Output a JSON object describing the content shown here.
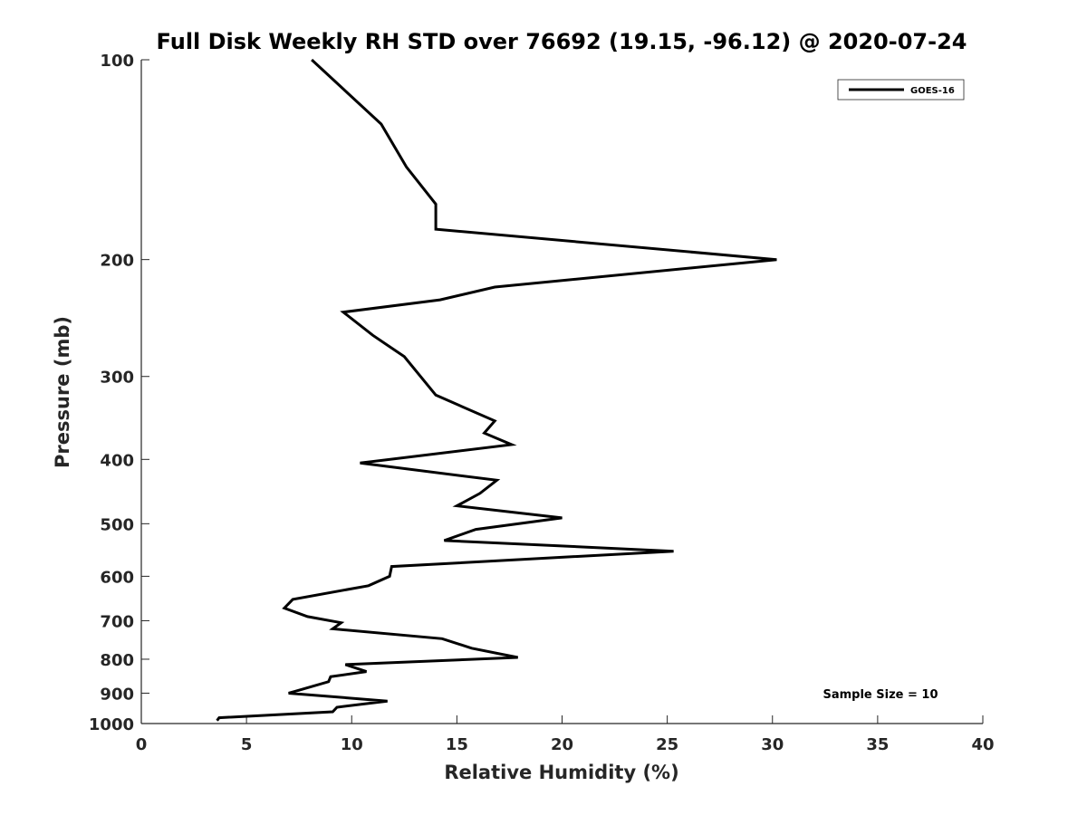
{
  "chart_data": {
    "type": "line",
    "title": "Full Disk Weekly RH STD over 76692 (19.15, -96.12) @ 2020-07-24",
    "xlabel": "Relative Humidity (%)",
    "ylabel": "Pressure (mb)",
    "xlim": [
      0,
      40
    ],
    "ylim": [
      100,
      1000
    ],
    "y_scale": "log",
    "y_reversed": true,
    "x_ticks": [
      0,
      5,
      10,
      15,
      20,
      25,
      30,
      35,
      40
    ],
    "y_ticks": [
      100,
      200,
      300,
      400,
      500,
      600,
      700,
      800,
      900,
      1000
    ],
    "grid": false,
    "legend": {
      "entries": [
        "GOES-16"
      ],
      "placement": "top-right"
    },
    "annotation": "Sample Size = 10",
    "series": [
      {
        "name": "GOES-16",
        "color": "#000000",
        "points": [
          [
            8.1,
            100
          ],
          [
            11.4,
            125
          ],
          [
            12.6,
            145
          ],
          [
            14.0,
            165
          ],
          [
            14.0,
            180
          ],
          [
            30.2,
            200
          ],
          [
            16.8,
            220
          ],
          [
            14.2,
            230
          ],
          [
            9.6,
            240
          ],
          [
            11.0,
            260
          ],
          [
            12.5,
            280
          ],
          [
            14.0,
            320
          ],
          [
            16.8,
            350
          ],
          [
            16.3,
            365
          ],
          [
            17.6,
            380
          ],
          [
            10.4,
            405
          ],
          [
            16.9,
            430
          ],
          [
            16.1,
            450
          ],
          [
            15.0,
            470
          ],
          [
            20.0,
            490
          ],
          [
            15.9,
            510
          ],
          [
            14.4,
            530
          ],
          [
            25.3,
            550
          ],
          [
            11.9,
            580
          ],
          [
            11.8,
            600
          ],
          [
            10.8,
            620
          ],
          [
            7.2,
            650
          ],
          [
            6.8,
            670
          ],
          [
            7.9,
            690
          ],
          [
            9.5,
            705
          ],
          [
            9.1,
            720
          ],
          [
            14.3,
            745
          ],
          [
            15.7,
            770
          ],
          [
            17.9,
            795
          ],
          [
            9.7,
            815
          ],
          [
            10.7,
            835
          ],
          [
            9.0,
            850
          ],
          [
            8.9,
            865
          ],
          [
            7.0,
            900
          ],
          [
            11.7,
            925
          ],
          [
            9.3,
            945
          ],
          [
            9.1,
            960
          ],
          [
            3.7,
            980
          ],
          [
            3.6,
            990
          ]
        ]
      }
    ]
  }
}
